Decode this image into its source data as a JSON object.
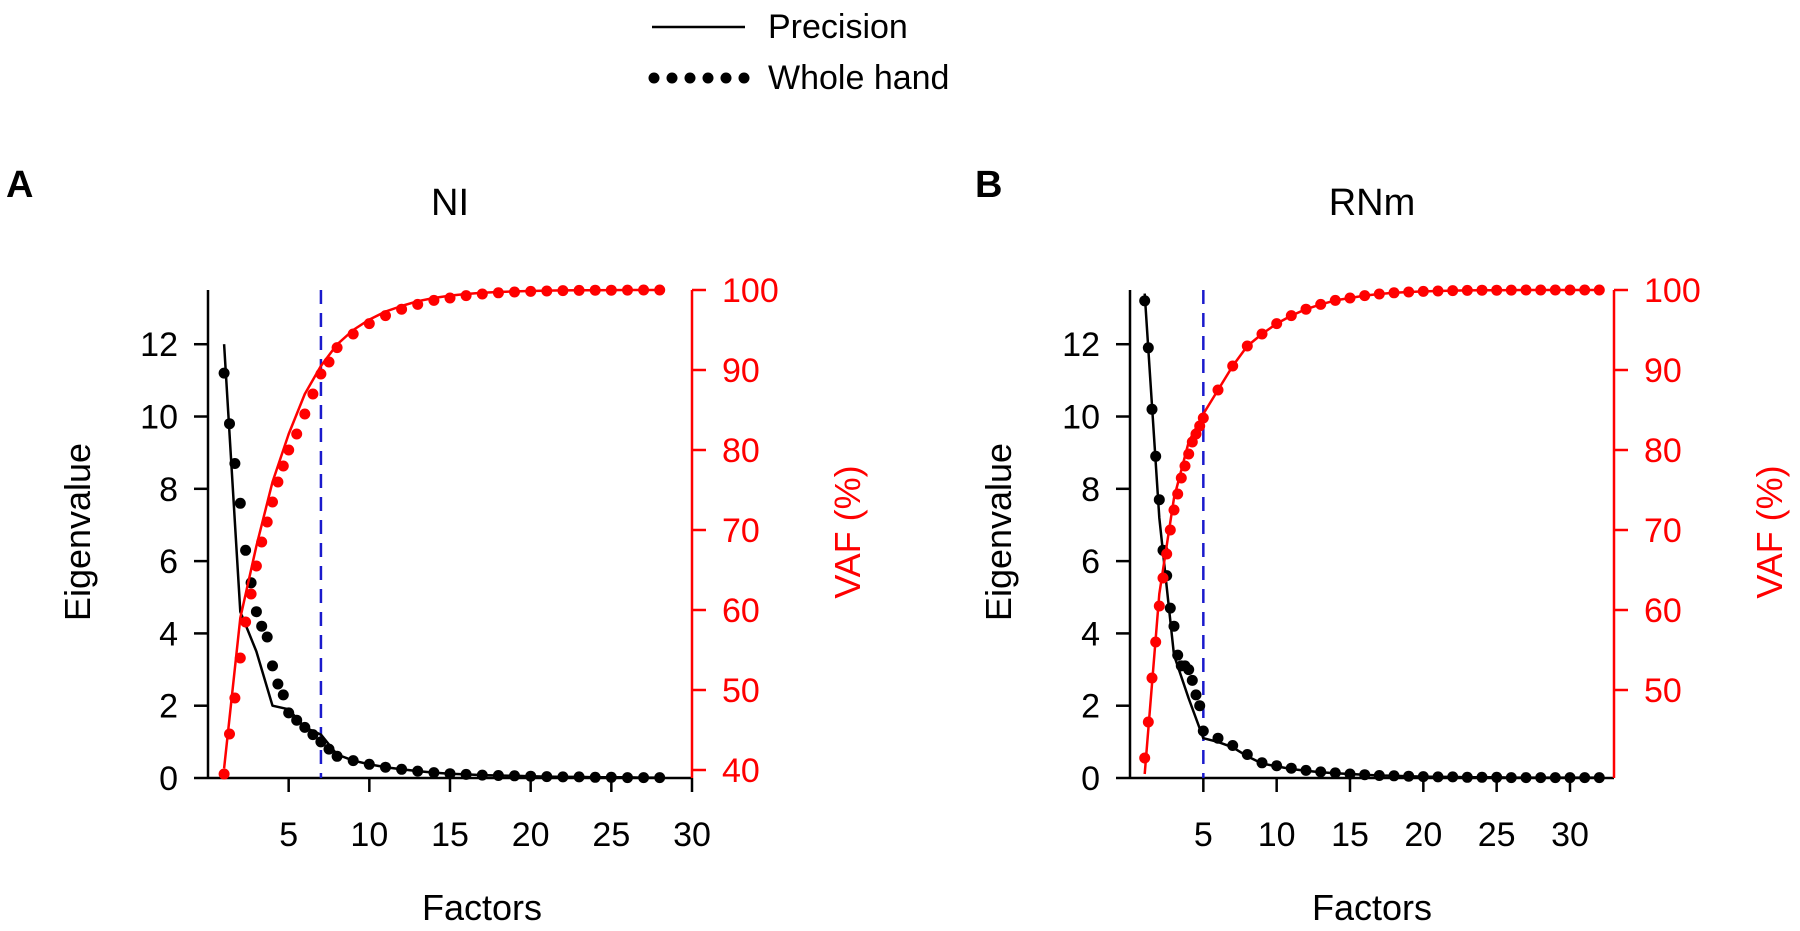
{
  "legend": {
    "items": [
      {
        "label": "Precision",
        "style": "solid"
      },
      {
        "label": "Whole hand",
        "style": "dotted"
      }
    ]
  },
  "colors": {
    "eigen": "#000000",
    "vaf": "#ff0000",
    "cutoff": "#1a1acc",
    "axis_left": "#000000",
    "axis_right": "#ff0000"
  },
  "chart_data": [
    {
      "panel_label": "A",
      "title": "NI",
      "type": "line",
      "xlabel": "Factors",
      "ylabel": "Eigenvalue",
      "ylabel_right": "VAF (%)",
      "xlim": [
        0,
        30
      ],
      "ylim": [
        0,
        13.5
      ],
      "ylim_right": [
        39,
        100
      ],
      "x_ticks": [
        5,
        10,
        15,
        20,
        25,
        30
      ],
      "y_ticks": [
        0,
        2,
        4,
        6,
        8,
        10,
        12
      ],
      "y_ticks_right": [
        40,
        50,
        60,
        70,
        80,
        90,
        100
      ],
      "cutoff_factor": 7,
      "series": [
        {
          "name": "Precision eigenvalue",
          "axis": "left",
          "style": "solid",
          "x": [
            1,
            2,
            3,
            4,
            5,
            6,
            7,
            8,
            9,
            10,
            11,
            12,
            13,
            14,
            15,
            16,
            17,
            18,
            19,
            20,
            21,
            22,
            23,
            24,
            25,
            26,
            27,
            28
          ],
          "y": [
            12.0,
            4.6,
            3.5,
            2.0,
            1.9,
            1.4,
            1.2,
            0.65,
            0.48,
            0.38,
            0.3,
            0.24,
            0.19,
            0.15,
            0.12,
            0.1,
            0.08,
            0.07,
            0.06,
            0.05,
            0.04,
            0.03,
            0.03,
            0.02,
            0.02,
            0.02,
            0.01,
            0.01
          ]
        },
        {
          "name": "Whole hand eigenvalue",
          "axis": "left",
          "style": "dotted",
          "x": [
            1,
            1.33,
            1.67,
            2,
            2.33,
            2.67,
            3,
            3.33,
            3.67,
            4,
            4.33,
            4.67,
            5,
            5.5,
            6,
            6.5,
            7,
            7.5,
            8,
            9,
            10,
            11,
            12,
            13,
            14,
            15,
            16,
            17,
            18,
            19,
            20,
            21,
            22,
            23,
            24,
            25,
            26,
            27,
            28
          ],
          "y": [
            11.2,
            9.8,
            8.7,
            7.6,
            6.3,
            5.4,
            4.6,
            4.2,
            3.9,
            3.1,
            2.6,
            2.3,
            1.8,
            1.6,
            1.4,
            1.2,
            1.0,
            0.8,
            0.6,
            0.48,
            0.38,
            0.3,
            0.24,
            0.19,
            0.15,
            0.12,
            0.1,
            0.08,
            0.07,
            0.06,
            0.05,
            0.04,
            0.03,
            0.03,
            0.02,
            0.02,
            0.01,
            0.01,
            0.01
          ]
        },
        {
          "name": "Precision VAF",
          "axis": "right",
          "style": "solid",
          "x": [
            1,
            2,
            3,
            4,
            5,
            6,
            7,
            8,
            9,
            10,
            11,
            12,
            13,
            14,
            15,
            16,
            17,
            18,
            19,
            20,
            21,
            22,
            23,
            24,
            25,
            26,
            27,
            28
          ],
          "y": [
            40.2,
            59.0,
            68.0,
            76.0,
            82.0,
            87.0,
            90.5,
            93.2,
            95.0,
            96.3,
            97.3,
            98.0,
            98.6,
            99.0,
            99.3,
            99.5,
            99.65,
            99.75,
            99.82,
            99.88,
            99.92,
            99.95,
            99.97,
            99.98,
            99.99,
            100,
            100,
            100
          ]
        },
        {
          "name": "Whole hand VAF",
          "axis": "right",
          "style": "dotted",
          "x": [
            1,
            1.33,
            1.67,
            2,
            2.33,
            2.67,
            3,
            3.33,
            3.67,
            4,
            4.33,
            4.67,
            5,
            5.5,
            6,
            6.5,
            7,
            7.5,
            8,
            9,
            10,
            11,
            12,
            13,
            14,
            15,
            16,
            17,
            18,
            19,
            20,
            21,
            22,
            23,
            24,
            25,
            26,
            27,
            28
          ],
          "y": [
            39.5,
            44.5,
            49.0,
            54.0,
            58.5,
            62.0,
            65.5,
            68.5,
            71.0,
            73.5,
            76.0,
            78.0,
            80.0,
            82.0,
            84.5,
            87.0,
            89.5,
            91.0,
            92.8,
            94.5,
            95.8,
            96.8,
            97.6,
            98.2,
            98.7,
            99.0,
            99.3,
            99.5,
            99.65,
            99.75,
            99.82,
            99.88,
            99.92,
            99.95,
            99.97,
            99.98,
            99.99,
            100,
            100
          ]
        }
      ]
    },
    {
      "panel_label": "B",
      "title": "RNm",
      "type": "line",
      "xlabel": "Factors",
      "ylabel": "Eigenvalue",
      "ylabel_right": "VAF (%)",
      "xlim": [
        0,
        33
      ],
      "ylim": [
        0,
        13.5
      ],
      "ylim_right": [
        39,
        100
      ],
      "x_ticks": [
        5,
        10,
        15,
        20,
        25,
        30
      ],
      "y_ticks": [
        0,
        2,
        4,
        6,
        8,
        10,
        12
      ],
      "y_ticks_right": [
        50,
        60,
        70,
        80,
        90,
        100
      ],
      "cutoff_factor": 5,
      "series": [
        {
          "name": "Precision eigenvalue",
          "axis": "left",
          "style": "solid",
          "x": [
            1,
            2,
            3,
            4,
            5,
            6,
            7,
            8,
            9,
            10,
            11,
            12,
            13,
            14,
            15,
            16,
            17,
            18,
            19,
            20,
            21,
            22,
            23,
            24,
            25,
            26,
            27,
            28,
            29,
            30,
            31,
            32
          ],
          "y": [
            13.4,
            7.2,
            3.4,
            2.2,
            1.1,
            1.0,
            0.85,
            0.6,
            0.4,
            0.32,
            0.25,
            0.2,
            0.16,
            0.13,
            0.11,
            0.09,
            0.07,
            0.06,
            0.05,
            0.04,
            0.03,
            0.03,
            0.02,
            0.02,
            0.02,
            0.01,
            0.01,
            0.01,
            0.01,
            0.01,
            0.01,
            0.01
          ]
        },
        {
          "name": "Whole hand eigenvalue",
          "axis": "left",
          "style": "dotted",
          "x": [
            1,
            1.25,
            1.5,
            1.75,
            2,
            2.25,
            2.5,
            2.75,
            3,
            3.25,
            3.5,
            3.75,
            4,
            4.25,
            4.5,
            4.75,
            5,
            6,
            7,
            8,
            9,
            10,
            11,
            12,
            13,
            14,
            15,
            16,
            17,
            18,
            19,
            20,
            21,
            22,
            23,
            24,
            25,
            26,
            27,
            28,
            29,
            30,
            31,
            32
          ],
          "y": [
            13.2,
            11.9,
            10.2,
            8.9,
            7.7,
            6.3,
            5.6,
            4.7,
            4.2,
            3.4,
            3.1,
            3.1,
            3.0,
            2.7,
            2.3,
            2.0,
            1.3,
            1.1,
            0.9,
            0.65,
            0.42,
            0.34,
            0.27,
            0.21,
            0.17,
            0.14,
            0.11,
            0.09,
            0.07,
            0.06,
            0.05,
            0.04,
            0.03,
            0.03,
            0.02,
            0.02,
            0.02,
            0.01,
            0.01,
            0.01,
            0.01,
            0.01,
            0.01,
            0.01
          ]
        },
        {
          "name": "Precision VAF",
          "axis": "right",
          "style": "solid",
          "x": [
            1,
            2,
            3,
            4,
            5,
            6,
            7,
            8,
            9,
            10,
            11,
            12,
            13,
            14,
            15,
            16,
            17,
            18,
            19,
            20,
            21,
            22,
            23,
            24,
            25,
            26,
            27,
            28,
            29,
            30,
            31,
            32
          ],
          "y": [
            39.5,
            62.0,
            74.0,
            81.0,
            84.5,
            87.5,
            90.5,
            93.0,
            94.5,
            95.8,
            96.8,
            97.6,
            98.2,
            98.7,
            99.0,
            99.3,
            99.5,
            99.65,
            99.75,
            99.82,
            99.88,
            99.92,
            99.95,
            99.97,
            99.98,
            99.99,
            100,
            100,
            100,
            100,
            100,
            100
          ]
        },
        {
          "name": "Whole hand VAF",
          "axis": "right",
          "style": "dotted",
          "x": [
            1,
            1.25,
            1.5,
            1.75,
            2,
            2.25,
            2.5,
            2.75,
            3,
            3.25,
            3.5,
            3.75,
            4,
            4.25,
            4.5,
            4.75,
            5,
            6,
            7,
            8,
            9,
            10,
            11,
            12,
            13,
            14,
            15,
            16,
            17,
            18,
            19,
            20,
            21,
            22,
            23,
            24,
            25,
            26,
            27,
            28,
            29,
            30,
            31,
            32
          ],
          "y": [
            41.5,
            46.0,
            51.5,
            56.0,
            60.5,
            64.0,
            67.0,
            70.0,
            72.5,
            74.5,
            76.5,
            78.0,
            79.5,
            81.0,
            82.0,
            83.0,
            84.0,
            87.5,
            90.5,
            93.0,
            94.5,
            95.8,
            96.8,
            97.6,
            98.2,
            98.7,
            99.0,
            99.3,
            99.5,
            99.65,
            99.75,
            99.82,
            99.88,
            99.92,
            99.95,
            99.97,
            99.98,
            99.99,
            100,
            100,
            100,
            100,
            100,
            100
          ]
        }
      ]
    }
  ]
}
